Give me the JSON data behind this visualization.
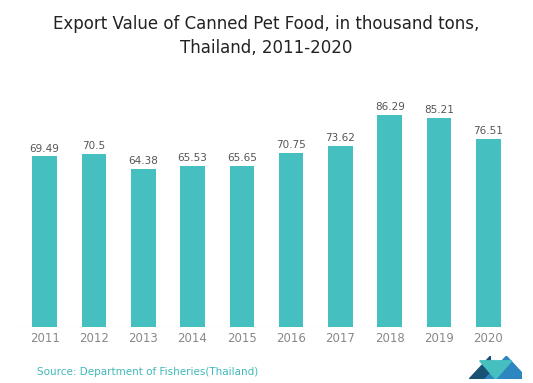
{
  "title": "Export Value of Canned Pet Food, in thousand tons,\nThailand, 2011-2020",
  "categories": [
    "2011",
    "2012",
    "2013",
    "2014",
    "2015",
    "2016",
    "2017",
    "2018",
    "2019",
    "2020"
  ],
  "values": [
    69.49,
    70.5,
    64.38,
    65.53,
    65.65,
    70.75,
    73.62,
    86.29,
    85.21,
    76.51
  ],
  "bar_color": "#45bfbf",
  "background_color": "#ffffff",
  "title_fontsize": 12,
  "label_fontsize": 7.5,
  "tick_fontsize": 8.5,
  "source_text": "Source: Department of Fisheries(Thailand)",
  "source_fontsize": 7.5,
  "source_color": "#40b8b8",
  "ylim": [
    0,
    105
  ],
  "bar_width": 0.5,
  "label_color": "#555555",
  "tick_color": "#888888",
  "bottom_line_color": "#cccccc"
}
